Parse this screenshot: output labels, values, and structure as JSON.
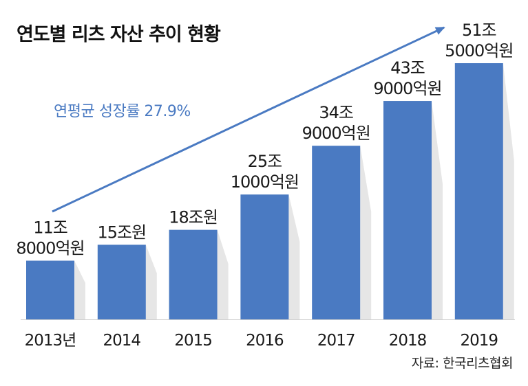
{
  "colors": {
    "bar": "#4a7ac2",
    "shadow": "#e6e6e6",
    "accent": "#4a7ac2",
    "text": "#1a1a1a"
  },
  "chart_data": {
    "type": "bar",
    "title": "연도별 리츠 자산 추이 현황",
    "categories": [
      "2013년",
      "2014",
      "2015",
      "2016",
      "2017",
      "2018",
      "2019"
    ],
    "values": [
      11.8,
      15,
      18,
      25.1,
      34.9,
      43.9,
      51.5
    ],
    "unit": "조원",
    "data_labels": [
      [
        "11조",
        "8000억원"
      ],
      [
        "15조원"
      ],
      [
        "18조원"
      ],
      [
        "25조",
        "1000억원"
      ],
      [
        "34조",
        "9000억원"
      ],
      [
        "43조",
        "9000억원"
      ],
      [
        "51조",
        "5000억원"
      ]
    ],
    "annotation": "연평균 성장률 27.9%",
    "source": "자료: 한국리츠협회",
    "grid": false
  }
}
